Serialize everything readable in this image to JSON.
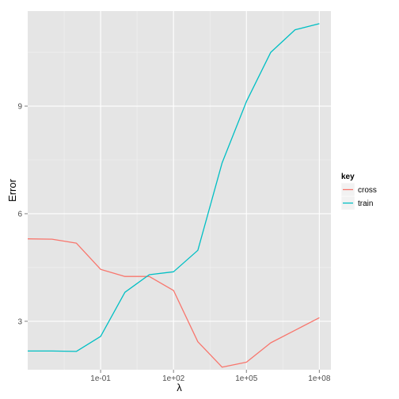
{
  "chart_data": {
    "type": "line",
    "xlabel": "λ",
    "ylabel": "Error",
    "x_scale": "log10",
    "xlim": [
      0.0001,
      300000000
    ],
    "ylim": [
      1.65,
      11.65
    ],
    "x_ticks": [
      {
        "value": 0.1,
        "label": "1e-01"
      },
      {
        "value": 100,
        "label": "1e+02"
      },
      {
        "value": 100000,
        "label": "1e+05"
      },
      {
        "value": 100000000,
        "label": "1e+08"
      }
    ],
    "y_ticks": [
      {
        "value": 3,
        "label": "3"
      },
      {
        "value": 6,
        "label": "6"
      },
      {
        "value": 9,
        "label": "9"
      }
    ],
    "grid": true,
    "legend": {
      "title": "key",
      "position": "right"
    },
    "series": [
      {
        "name": "cross",
        "color": "#F8766D",
        "x": [
          0.0001,
          0.001,
          0.01,
          0.1,
          1,
          10,
          100,
          1000,
          10000,
          100000,
          1000000,
          10000000,
          100000000
        ],
        "y": [
          5.3,
          5.29,
          5.18,
          4.45,
          4.25,
          4.25,
          3.86,
          2.43,
          1.72,
          1.86,
          2.4,
          2.75,
          3.1
        ]
      },
      {
        "name": "train",
        "color": "#00BFC4",
        "x": [
          0.0001,
          0.001,
          0.01,
          0.1,
          1,
          10,
          100,
          1000,
          10000,
          100000,
          1000000,
          10000000,
          100000000
        ],
        "y": [
          2.17,
          2.17,
          2.16,
          2.58,
          3.81,
          4.3,
          4.38,
          4.98,
          7.42,
          9.13,
          10.5,
          11.13,
          11.3
        ]
      }
    ]
  }
}
